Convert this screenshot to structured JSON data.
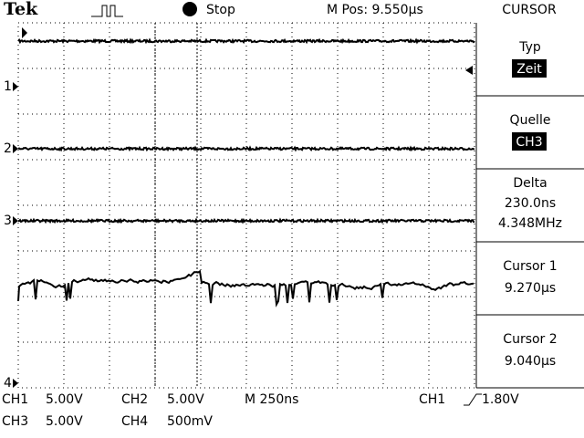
{
  "header": {
    "brand": "Tek",
    "state": "Stop",
    "position": "M Pos: 9.550µs",
    "menu_title": "CURSOR"
  },
  "menu": [
    {
      "label": "Typ",
      "value": "Zeit"
    },
    {
      "label": "Quelle",
      "value": "CH3"
    },
    {
      "label": "Delta",
      "lines": [
        "230.0ns",
        "4.348MHz"
      ]
    },
    {
      "label": "Cursor 1",
      "value": "9.270µs"
    },
    {
      "label": "Cursor 2",
      "value": "9.040µs"
    }
  ],
  "channel_markers": [
    "1",
    "2",
    "3",
    "4"
  ],
  "status": {
    "rows": [
      [
        "CH1",
        "5.00V",
        "CH2",
        "5.00V",
        "M 250ns"
      ],
      [
        "CH3",
        "5.00V",
        "CH4",
        "500mV"
      ]
    ],
    "trigger": {
      "source": "CH1",
      "level": "1.80V"
    }
  }
}
